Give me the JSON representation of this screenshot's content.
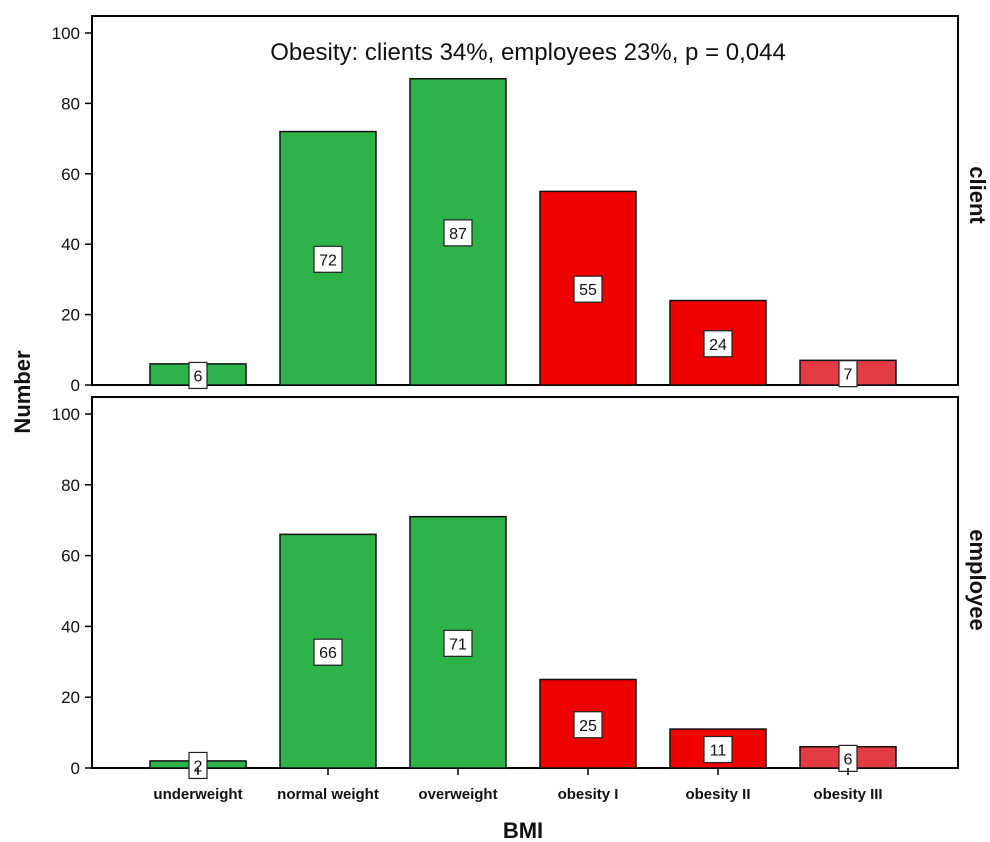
{
  "chart_data": {
    "type": "bar",
    "xlabel": "BMI",
    "ylabel": "Number",
    "ylim": [
      0,
      100
    ],
    "yticks": [
      0,
      20,
      40,
      60,
      80,
      100
    ],
    "categories": [
      "underweight",
      "normal weight",
      "overweight",
      "obesity I",
      "obesity II",
      "obesity III"
    ],
    "bar_colors": [
      "#2db34a",
      "#2db34a",
      "#2db34a",
      "#ee0000",
      "#ee0000",
      "#e33b43"
    ],
    "annotation": "Obesity: clients 34%, employees 23%, p = 0,044",
    "panels": [
      {
        "label": "client",
        "values": [
          6,
          72,
          87,
          55,
          24,
          7
        ]
      },
      {
        "label": "employee",
        "values": [
          2,
          66,
          71,
          25,
          11,
          6
        ]
      }
    ]
  }
}
